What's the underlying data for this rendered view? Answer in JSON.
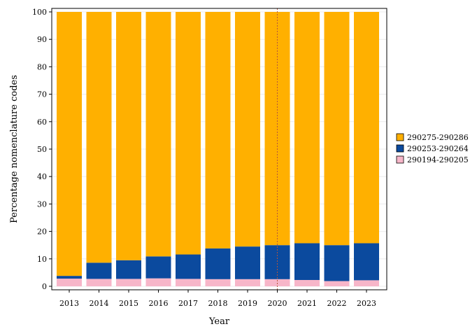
{
  "chart_data": {
    "type": "bar",
    "stacked": true,
    "xlabel": "Year",
    "ylabel": "Percentage nomenclature codes",
    "ylim": [
      0,
      100
    ],
    "yticks": [
      0,
      10,
      20,
      30,
      40,
      50,
      60,
      70,
      80,
      90,
      100
    ],
    "categories": [
      "2013",
      "2014",
      "2015",
      "2016",
      "2017",
      "2018",
      "2019",
      "2020",
      "2021",
      "2022",
      "2023"
    ],
    "reference_line": {
      "x": "2020",
      "style": "dotted",
      "color": "#b5553b"
    },
    "grid": "horizontal",
    "legend_position": "right",
    "series": [
      {
        "name": "290194-290205",
        "color": "#f7b6c9",
        "values": [
          2.8,
          2.7,
          2.7,
          2.9,
          2.7,
          2.6,
          2.6,
          2.6,
          2.3,
          1.9,
          2.2
        ]
      },
      {
        "name": "290253-290264",
        "color": "#0b4a9e",
        "values": [
          1.0,
          5.9,
          6.8,
          8.0,
          8.9,
          11.2,
          11.9,
          12.4,
          13.4,
          13.1,
          13.5
        ]
      },
      {
        "name": "290275-290286",
        "color": "#ffb000",
        "values": [
          96.2,
          91.4,
          90.5,
          89.1,
          88.4,
          86.2,
          85.5,
          85.0,
          84.3,
          85.0,
          84.3
        ]
      }
    ],
    "legend_order": [
      2,
      1,
      0
    ]
  }
}
